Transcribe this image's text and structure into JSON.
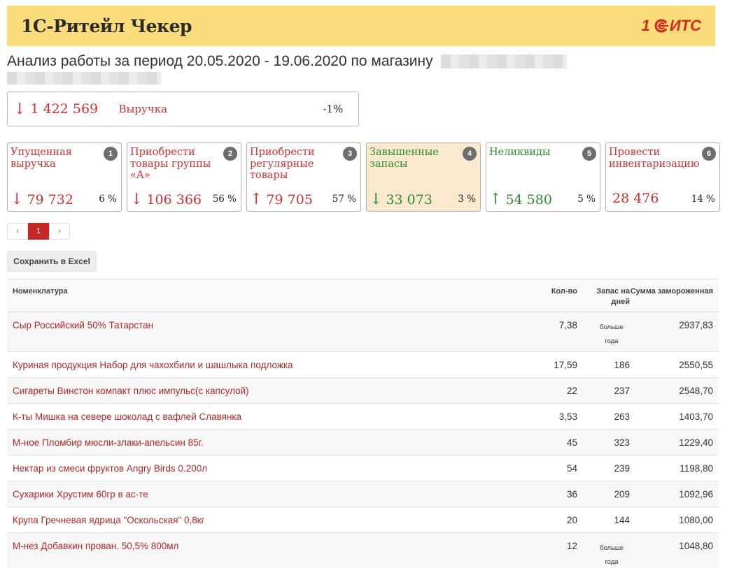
{
  "header": {
    "app_title": "1С-Ритейл Чекер",
    "logo_text": "ИТС",
    "logo_prefix": "1"
  },
  "page": {
    "title": "Анализ работы за период 20.05.2020 - 19.06.2020 по магазину"
  },
  "revenue": {
    "arrow": "↓",
    "value": "1 422 569",
    "label": "Выручка",
    "pct": "-1%"
  },
  "kpis": [
    {
      "num": "1",
      "title": "Упущенная выручка",
      "arrow": "↓",
      "value": "79 732",
      "pct": "6 %",
      "color": "#d32f2f"
    },
    {
      "num": "2",
      "title": "Приобрести товары группы «А»",
      "arrow": "↓",
      "value": "106 366",
      "pct": "56 %",
      "color": "#d32f2f"
    },
    {
      "num": "3",
      "title": "Приобрести регулярные товары",
      "arrow": "↑",
      "value": "79 705",
      "pct": "57 %",
      "color": "#d32f2f"
    },
    {
      "num": "4",
      "title": "Завышенные запасы",
      "arrow": "↓",
      "value": "33 073",
      "pct": "3 %",
      "color": "#2e8b2e"
    },
    {
      "num": "5",
      "title": "Неликвиды",
      "arrow": "↑",
      "value": "54 580",
      "pct": "5 %",
      "color": "#2e8b2e"
    },
    {
      "num": "6",
      "title": "Провести инвентаризацию",
      "arrow": "",
      "value": "28 476",
      "pct": "14 %",
      "color": "#d32f2f"
    }
  ],
  "pager": {
    "prev": "‹",
    "current": "1",
    "next": "›"
  },
  "excel_button": "Сохранить в Excel",
  "table": {
    "headers": {
      "name": "Номенклатура",
      "qty": "Кол-во",
      "days": "Запас на дней",
      "sum": "Сумма замороженная"
    },
    "rows": [
      {
        "name": "Сыр Российский 50% Татарстан",
        "qty": "7,38",
        "days": "больше года",
        "sum": "2937,83"
      },
      {
        "name": "Куриная продукция Набор для чахохбили и шашлыка подложка",
        "qty": "17,59",
        "days": "186",
        "sum": "2550,55"
      },
      {
        "name": "Сигареты Винстон компакт плюс импульс(с капсулой)",
        "qty": "22",
        "days": "237",
        "sum": "2548,70"
      },
      {
        "name": "К-ты Мишка на севере шоколад с вафлей Славянка",
        "qty": "3,53",
        "days": "263",
        "sum": "1403,70"
      },
      {
        "name": "М-ное Пломбир мюсли-злаки-апельсин 85г.",
        "qty": "45",
        "days": "323",
        "sum": "1229,40"
      },
      {
        "name": "Нектар из смеси фруктов Angry Birds 0.200л",
        "qty": "54",
        "days": "239",
        "sum": "1198,80"
      },
      {
        "name": "Сухарики Хрустим 60гр в ас-те",
        "qty": "36",
        "days": "209",
        "sum": "1092,96"
      },
      {
        "name": "Крупа Гречневая ядрица \"Оскольская\" 0,8кг",
        "qty": "20",
        "days": "144",
        "sum": "1080,00"
      },
      {
        "name": "М-нез Добавкин прован. 50,5% 800мл",
        "qty": "12",
        "days": "больше года",
        "sum": "1048,80"
      }
    ]
  }
}
